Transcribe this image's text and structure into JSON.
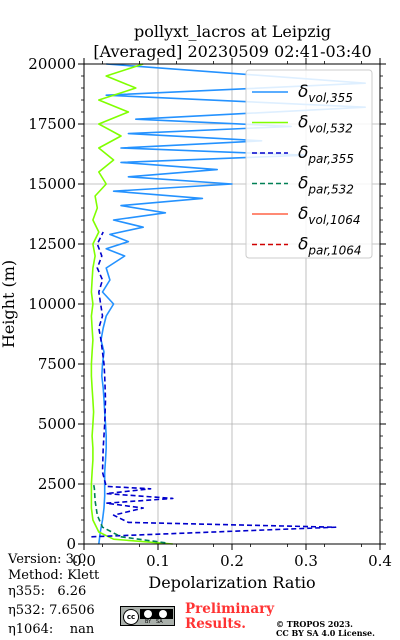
{
  "title_line1": "pollyxt_lacros at Leipzig",
  "title_line2": "[Averaged] 20230509 02:41-03:40",
  "info": {
    "version": "Version: 3.0",
    "method": "Method: Klett",
    "eta355": "η355:   6.26",
    "eta532": "η532: 7.6506",
    "eta1064": "η1064:    nan"
  },
  "preliminary": {
    "line1": "Preliminary",
    "line2": "Results."
  },
  "copyright": {
    "line1": "© TROPOS 2023.",
    "line2": "CC BY SA 4.0 License."
  },
  "colors": {
    "vol355": "#2492ff",
    "vol532": "#80ff00",
    "par355": "#0000cc",
    "par532": "#008055",
    "vol1064": "#ff6347",
    "par1064": "#d00000"
  },
  "chart_data": {
    "type": "line",
    "xlabel": "Depolarization Ratio",
    "ylabel": "Height (m)",
    "xlim": [
      0.0,
      0.4
    ],
    "ylim": [
      0,
      20000
    ],
    "xticks": [
      "0.0",
      "0.1",
      "0.2",
      "0.3",
      "0.4"
    ],
    "yticks": [
      "0",
      "2500",
      "5000",
      "7500",
      "10000",
      "12500",
      "15000",
      "17500",
      "20000"
    ],
    "grid": true,
    "legend_position": "top-right",
    "series": [
      {
        "name": "δ_vol,355",
        "label_main": "δ",
        "label_sub": "vol,355",
        "style": "solid",
        "x": [
          0.02,
          0.022,
          0.025,
          0.027,
          0.028,
          0.028,
          0.028,
          0.029,
          0.03,
          0.03,
          0.029,
          0.028,
          0.027,
          0.026,
          0.024,
          0.025,
          0.027,
          0.023,
          0.026,
          0.03,
          0.04,
          0.025,
          0.035,
          0.03,
          0.055,
          0.03,
          0.06,
          0.035,
          0.08,
          0.04,
          0.11,
          0.05,
          0.16,
          0.04,
          0.2,
          0.06,
          0.18,
          0.05,
          0.3,
          0.05,
          0.24,
          0.06,
          0.28,
          0.07,
          0.38,
          0.03,
          0.38,
          0.03
        ],
        "y": [
          0,
          500,
          1000,
          1500,
          2000,
          2500,
          3000,
          3500,
          4000,
          4500,
          5000,
          5500,
          6000,
          6500,
          7000,
          7500,
          8000,
          8500,
          9000,
          9500,
          10000,
          10500,
          11000,
          11500,
          12000,
          12300,
          12600,
          12900,
          13200,
          13500,
          13800,
          14100,
          14400,
          14700,
          15000,
          15300,
          15600,
          15900,
          16200,
          16500,
          16800,
          17100,
          17400,
          17700,
          18200,
          18700,
          19200,
          20000
        ]
      },
      {
        "name": "δ_vol,532",
        "label_main": "δ",
        "label_sub": "vol,532",
        "style": "solid",
        "x": [
          0.12,
          0.04,
          0.02,
          0.012,
          0.01,
          0.01,
          0.01,
          0.011,
          0.012,
          0.012,
          0.011,
          0.012,
          0.013,
          0.012,
          0.011,
          0.01,
          0.01,
          0.011,
          0.012,
          0.011,
          0.01,
          0.012,
          0.01,
          0.011,
          0.012,
          0.015,
          0.012,
          0.02,
          0.012,
          0.018,
          0.015,
          0.03,
          0.02,
          0.04,
          0.02,
          0.05,
          0.02,
          0.06,
          0.02,
          0.07,
          0.03,
          0.08
        ],
        "y": [
          0,
          200,
          500,
          1000,
          1500,
          2000,
          2500,
          3000,
          3500,
          4000,
          4500,
          5000,
          5500,
          6000,
          6500,
          7000,
          7500,
          8000,
          8500,
          9000,
          9500,
          10000,
          10500,
          11000,
          11500,
          12000,
          12500,
          13000,
          13500,
          14000,
          14500,
          15000,
          15500,
          16000,
          16500,
          17000,
          17500,
          18000,
          18500,
          19000,
          19500,
          20000
        ]
      },
      {
        "name": "δ_par,355",
        "label_main": "δ",
        "label_sub": "par,355",
        "style": "dashed",
        "x": [
          0.01,
          0.34,
          0.06,
          0.04,
          0.08,
          0.03,
          0.12,
          0.03,
          0.09,
          0.03,
          0.025,
          0.026,
          0.028,
          0.029,
          0.028,
          0.027,
          0.025,
          0.023,
          0.02,
          0.025,
          0.02,
          0.025,
          0.018,
          0.024,
          0.018,
          0.026
        ],
        "y": [
          300,
          700,
          900,
          1200,
          1500,
          1700,
          1900,
          2100,
          2300,
          2400,
          3000,
          4000,
          5000,
          6000,
          7000,
          7500,
          8000,
          8500,
          9000,
          9500,
          10500,
          11000,
          11500,
          12000,
          12500,
          13000
        ]
      },
      {
        "name": "δ_par,532",
        "label_main": "δ",
        "label_sub": "par,532",
        "style": "dashed",
        "x": [
          0.11,
          0.05,
          0.025,
          0.018,
          0.015,
          0.014,
          0.013
        ],
        "y": [
          50,
          300,
          700,
          1200,
          1800,
          2300,
          2500
        ]
      },
      {
        "name": "δ_vol,1064",
        "label_main": "δ",
        "label_sub": "vol,1064",
        "style": "solid",
        "x": [],
        "y": []
      },
      {
        "name": "δ_par,1064",
        "label_main": "δ",
        "label_sub": "par,1064",
        "style": "dashed",
        "x": [],
        "y": []
      }
    ]
  }
}
